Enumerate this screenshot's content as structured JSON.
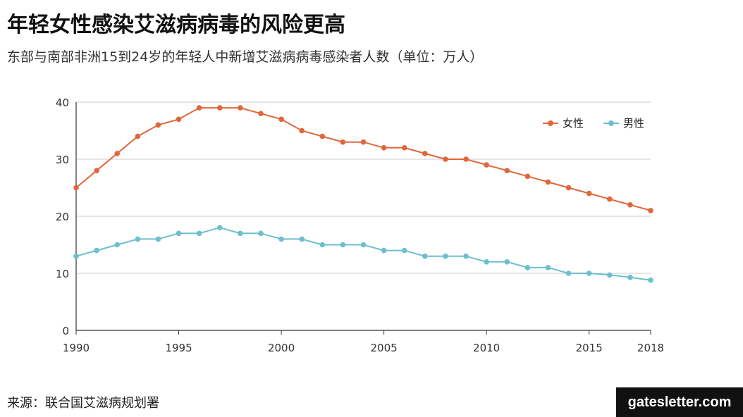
{
  "title": "年轻女性感染艾滋病病毒的风险更高",
  "subtitle": "东部与南部非洲15到24岁的年轻人中新增艾滋病病毒感染者人数（单位：万人）",
  "source": "来源：联合国艾滋病规划署",
  "brand": "gatesletter.com",
  "colors": {
    "female": "#e0673b",
    "male": "#6cc0cc",
    "grid": "#cccccc",
    "axis": "#333333"
  },
  "chart_data": {
    "type": "line",
    "title": "年轻女性感染艾滋病病毒的风险更高",
    "ylim": [
      0,
      40
    ],
    "yticks": [
      0,
      10,
      20,
      30,
      40
    ],
    "xlim": [
      1990,
      2018
    ],
    "xticks": [
      1990,
      1995,
      2000,
      2005,
      2010,
      2015,
      2018
    ],
    "grid": "horizontal",
    "legend_position": "top-right",
    "x": [
      1990,
      1991,
      1992,
      1993,
      1994,
      1995,
      1996,
      1997,
      1998,
      1999,
      2000,
      2001,
      2002,
      2003,
      2004,
      2005,
      2006,
      2007,
      2008,
      2009,
      2010,
      2011,
      2012,
      2013,
      2014,
      2015,
      2016,
      2017,
      2018
    ],
    "series": [
      {
        "name": "女性",
        "values": [
          25,
          28,
          31,
          34,
          36,
          37,
          39,
          39,
          39,
          38,
          37,
          35,
          34,
          33,
          33,
          32,
          32,
          31,
          30,
          30,
          29,
          28,
          27,
          26,
          25,
          24,
          23,
          22,
          21
        ]
      },
      {
        "name": "男性",
        "values": [
          13,
          14,
          15,
          16,
          16,
          17,
          17,
          18,
          17,
          17,
          16,
          16,
          15,
          15,
          15,
          14,
          14,
          13,
          13,
          13,
          12,
          12,
          11,
          11,
          10,
          10,
          9.7,
          9.3,
          8.8
        ]
      }
    ]
  }
}
